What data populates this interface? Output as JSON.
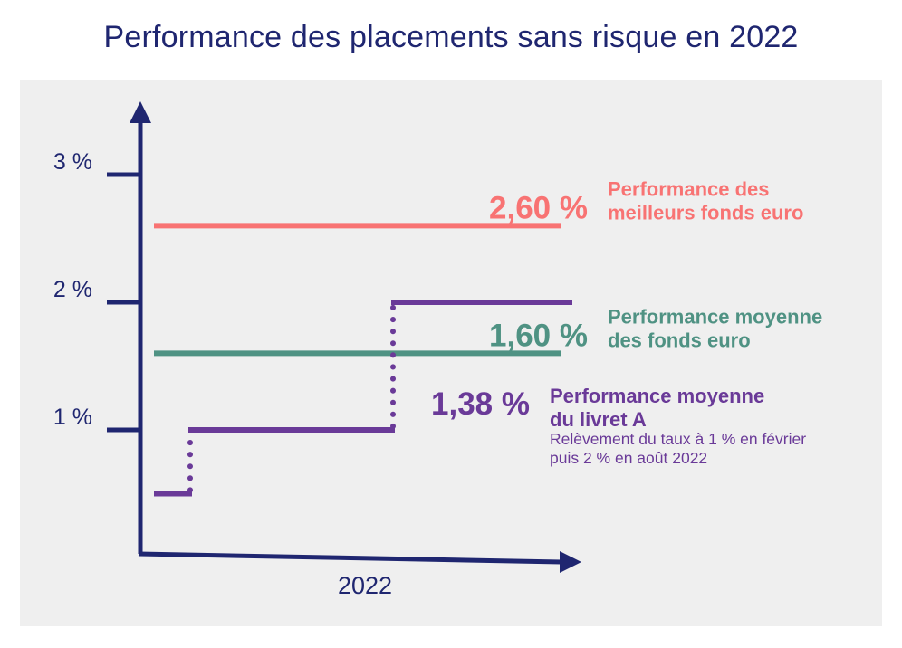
{
  "title": "Performance des placements sans risque en 2022",
  "chart_data": {
    "type": "line",
    "title": "Performance des placements sans risque en 2022",
    "xlabel": "2022",
    "y_ticks": [
      {
        "value": 1,
        "label": "1 %"
      },
      {
        "value": 2,
        "label": "2 %"
      },
      {
        "value": 3,
        "label": "3 %"
      }
    ],
    "ylim": [
      0,
      3.5
    ],
    "grid": false,
    "series": [
      {
        "name": "Performance des meilleurs fonds euro",
        "label_lines": [
          "Performance des",
          "meilleurs fonds euro"
        ],
        "value_label": "2,60 %",
        "color": "#f87373",
        "style": "flat",
        "values": [
          2.6
        ]
      },
      {
        "name": "Performance moyenne des fonds euro",
        "label_lines": [
          "Performance moyenne",
          "des fonds euro"
        ],
        "value_label": "1,60 %",
        "color": "#4f9283",
        "style": "flat",
        "values": [
          1.6
        ]
      },
      {
        "name": "Performance moyenne du livret A",
        "label_lines": [
          "Performance moyenne",
          "du livret A"
        ],
        "value_label": "1,38 %",
        "color": "#6a3a98",
        "style": "step",
        "values": [
          0.5,
          1,
          2
        ],
        "note_lines": [
          "Relèvement du taux à 1 % en février",
          "puis 2 % en août 2022"
        ]
      }
    ],
    "colors": {
      "axis": "#1f2670",
      "panel": "#efefef"
    }
  }
}
